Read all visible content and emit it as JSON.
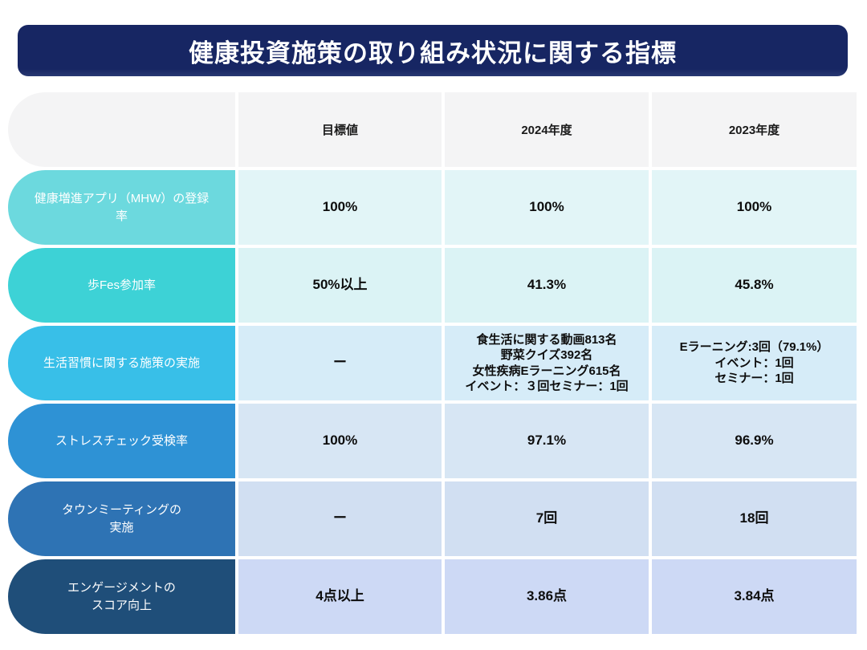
{
  "title": "健康投資施策の取り組み状況に関する指標",
  "theme": {
    "title_bg": "#172663",
    "title_text": "#ffffff",
    "header_bg": "#f4f4f5",
    "value_text": "#0d0d0d"
  },
  "table": {
    "header": {
      "metric": "",
      "target": "目標値",
      "fy2024": "2024年度",
      "fy2023": "2023年度"
    },
    "rows": [
      {
        "label": "健康増進アプリ（MHW）の登録率",
        "target": "100%",
        "fy2024": "100%",
        "fy2023": "100%",
        "colors": {
          "label_bg": "#6cd9de",
          "cell_bg": "#e2f5f7"
        }
      },
      {
        "label": "歩Fes参加率",
        "target": "50%以上",
        "fy2024": "41.3%",
        "fy2023": "45.8%",
        "colors": {
          "label_bg": "#3dd2d6",
          "cell_bg": "#dbf3f5"
        }
      },
      {
        "label": "生活習慣に関する施策の実施",
        "target": "ー",
        "fy2024": "食生活に関する動画813名\n野菜クイズ392名\n女性疾病Eラーニング615名\nイベント：３回セミナー：1回",
        "fy2023": "Eラーニング:3回（79.1%）\nイベント：1回\nセミナー：1回",
        "colors": {
          "label_bg": "#38bfe8",
          "cell_bg": "#d6ecf8"
        }
      },
      {
        "label": "ストレスチェック受検率",
        "target": "100%",
        "fy2024": "97.1%",
        "fy2023": "96.9%",
        "colors": {
          "label_bg": "#2e92d5",
          "cell_bg": "#d7e6f4"
        }
      },
      {
        "label": "タウンミーティングの\n実施",
        "target": "ー",
        "fy2024": "7回",
        "fy2023": "18回",
        "colors": {
          "label_bg": "#2e73b4",
          "cell_bg": "#d1dff2"
        }
      },
      {
        "label": "エンゲージメントの\nスコア向上",
        "target": "4点以上",
        "fy2024": "3.86点",
        "fy2023": "3.84点",
        "colors": {
          "label_bg": "#1f4e79",
          "cell_bg": "#cdd9f5"
        }
      }
    ]
  }
}
